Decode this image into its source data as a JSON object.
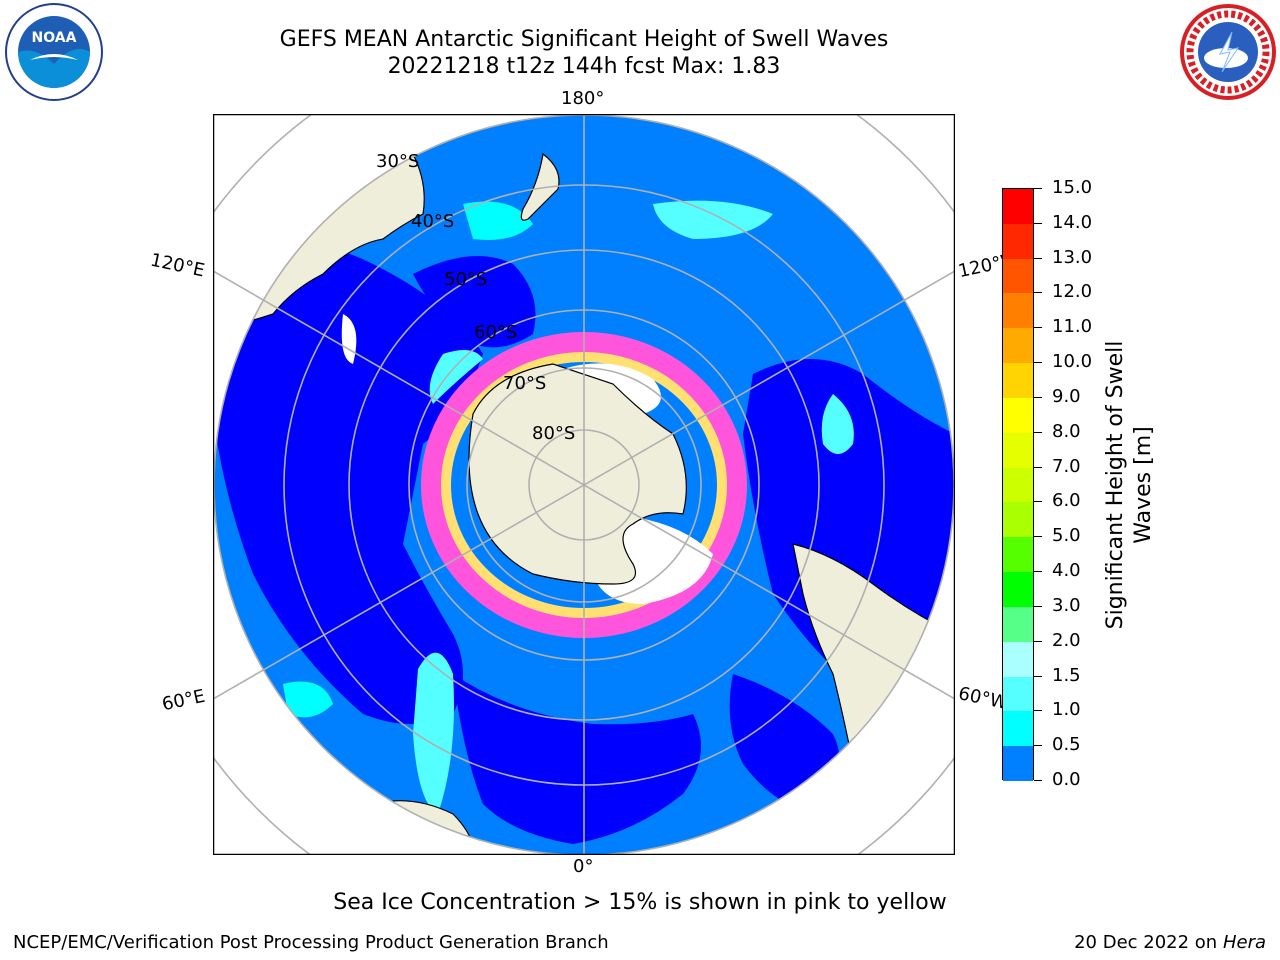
{
  "header": {
    "title_line1": "GEFS MEAN Antarctic Significant Height of Swell Waves",
    "title_line2": "20221218 t12z 144h fcst   Max: 1.83"
  },
  "map": {
    "projection": "south-polar-stereographic",
    "longitude_labels": {
      "top": "180°",
      "bottom": "0°",
      "upper_left": "120°E",
      "upper_right": "120°W",
      "lower_left": "60°E",
      "lower_right": "60°W"
    },
    "latitude_labels": [
      "30°S",
      "40°S",
      "50°S",
      "60°S",
      "70°S",
      "80°S"
    ],
    "colors": {
      "land": "#efeedb",
      "ocean_low": "#0000ff",
      "ocean_mid": "#0080ff",
      "ocean_high": "#00ffff",
      "sea_ice": "#ff55dd",
      "sea_ice_high": "#ffe070",
      "grid": "#b0b0b0"
    }
  },
  "colorbar": {
    "label": "Significant Height of Swell Waves [m]",
    "ticks": [
      "15.0",
      "14.0",
      "13.0",
      "12.0",
      "11.0",
      "10.0",
      "9.0",
      "8.0",
      "7.0",
      "6.0",
      "5.0",
      "4.0",
      "3.0",
      "2.0",
      "1.5",
      "1.0",
      "0.5",
      "0.0"
    ],
    "colors": [
      "#ff0000",
      "#ff2800",
      "#ff5500",
      "#ff7f00",
      "#ffaa00",
      "#ffd400",
      "#ffff00",
      "#e6ff00",
      "#ccff00",
      "#aaff00",
      "#55ff00",
      "#00ff00",
      "#55ff88",
      "#aaffff",
      "#55ffff",
      "#00ffff",
      "#0080ff",
      "#0000ff"
    ]
  },
  "footer": {
    "note": "Sea Ice Concentration > 15% is shown in pink to yellow",
    "credit": "NCEP/EMC/Verification Post Processing Product Generation Branch",
    "date": "20 Dec 2022 on",
    "machine": "Hera"
  }
}
